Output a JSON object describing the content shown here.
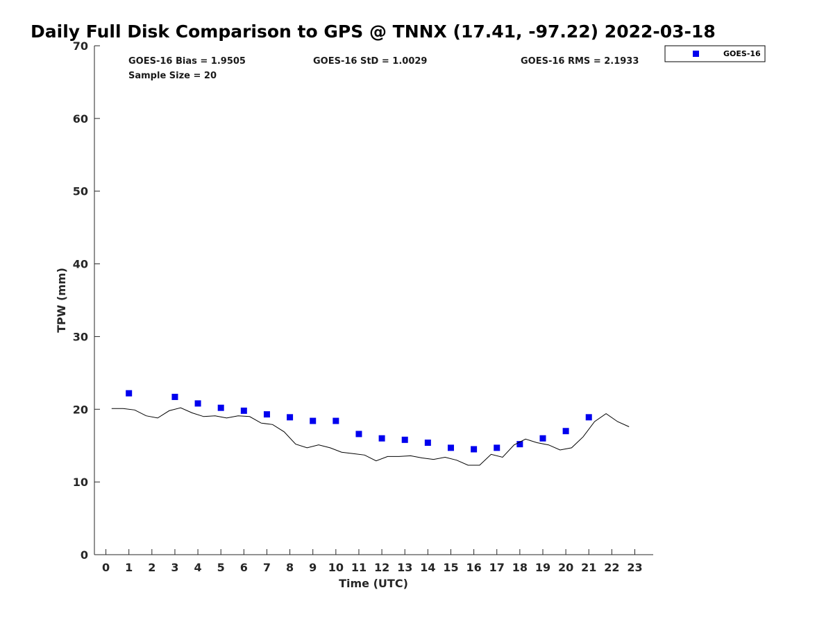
{
  "chart_data": {
    "type": "scatter",
    "title": "Daily Full Disk Comparison to GPS @ TNNX (17.41, -97.22) 2022-03-18",
    "xlabel": "Time (UTC)",
    "ylabel": "TPW (mm)",
    "xlim": [
      -0.5,
      23.8
    ],
    "ylim": [
      0,
      70
    ],
    "x_ticks": [
      "0",
      "1",
      "2",
      "3",
      "4",
      "5",
      "6",
      "7",
      "8",
      "9",
      "10",
      "11",
      "12",
      "13",
      "14",
      "15",
      "16",
      "17",
      "18",
      "19",
      "20",
      "21",
      "22",
      "23"
    ],
    "y_ticks": [
      "0",
      "10",
      "20",
      "30",
      "40",
      "50",
      "60",
      "70"
    ],
    "grid": false,
    "legend_position": "outside top-right",
    "stats": {
      "bias": "GOES-16 Bias = 1.9505",
      "std": "GOES-16 StD = 1.0029",
      "rms": "GOES-16 RMS = 2.1933",
      "sample": "Sample Size = 20"
    },
    "series": [
      {
        "name": "GOES-16",
        "kind": "scatter",
        "marker": "square",
        "color": "#0000ee",
        "x": [
          1,
          3,
          4,
          5,
          6,
          7,
          8,
          9,
          10,
          11,
          12,
          13,
          14,
          15,
          16,
          17,
          18,
          19,
          20,
          21
        ],
        "y": [
          22.2,
          21.7,
          20.8,
          20.2,
          19.8,
          19.3,
          18.9,
          18.4,
          18.4,
          16.6,
          16.0,
          15.8,
          15.4,
          14.7,
          14.5,
          14.7,
          15.2,
          16.0,
          17.0,
          18.9
        ]
      },
      {
        "kind": "line",
        "color": "#000000",
        "x": [
          0.25,
          0.75,
          1.25,
          1.75,
          2.25,
          2.75,
          3.25,
          3.75,
          4.25,
          4.75,
          5.25,
          5.75,
          6.25,
          6.75,
          7.25,
          7.75,
          8.25,
          8.75,
          9.25,
          9.75,
          10.25,
          10.75,
          11.25,
          11.75,
          12.25,
          12.75,
          13.25,
          13.75,
          14.25,
          14.75,
          15.25,
          15.75,
          16.25,
          16.75,
          17.25,
          17.75,
          18.25,
          18.75,
          19.25,
          19.75,
          20.25,
          20.75,
          21.25,
          21.75,
          22.25,
          22.75
        ],
        "y": [
          20.1,
          20.1,
          19.9,
          19.1,
          18.8,
          19.8,
          20.2,
          19.5,
          19.0,
          19.1,
          18.8,
          19.1,
          19.0,
          18.1,
          17.9,
          16.9,
          15.2,
          14.7,
          15.1,
          14.7,
          14.1,
          13.9,
          13.7,
          12.9,
          13.5,
          13.5,
          13.6,
          13.3,
          13.1,
          13.4,
          13.0,
          12.3,
          12.3,
          13.8,
          13.4,
          15.1,
          15.9,
          15.4,
          15.1,
          14.4,
          14.7,
          16.2,
          18.3,
          19.4,
          18.3,
          17.6
        ]
      }
    ]
  }
}
